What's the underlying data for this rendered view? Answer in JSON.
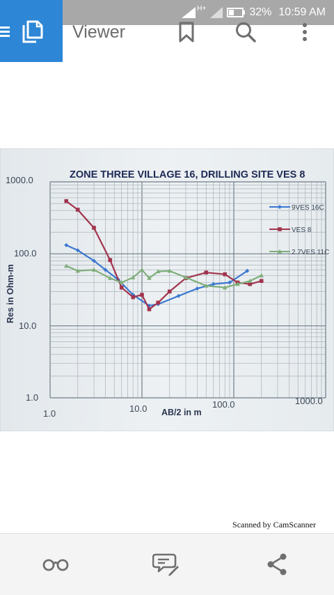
{
  "status_bar": {
    "network": "H+",
    "battery": "32%",
    "time": "10:59 AM"
  },
  "app_bar": {
    "title": "Viewer",
    "accent_color": "#2d86d6"
  },
  "document": {
    "scan_credit": "Scanned by CamScanner"
  },
  "chart_data": {
    "type": "line",
    "title": "ZONE THREE VILLAGE 16, DRILLING SITE VES 8",
    "xlabel": "AB/2 in m",
    "ylabel": "Res in Ohm-m",
    "x_scale": "log",
    "y_scale": "log",
    "xlim": [
      1.0,
      1000.0
    ],
    "ylim": [
      1.0,
      1000.0
    ],
    "x_ticks": [
      "1.0",
      "10.0",
      "100.0",
      "1000.0"
    ],
    "y_ticks": [
      "1000.0",
      "100.0",
      "10.0",
      "1.0"
    ],
    "grid": true,
    "legend": "right",
    "series": [
      {
        "name": "9VES 16C",
        "color": "#3b78d0",
        "marker": "diamond",
        "x": [
          1.5,
          2.0,
          3.0,
          4.0,
          5.5,
          8.0,
          12.0,
          15.0,
          25.0,
          40.0,
          60.0,
          90.0,
          140.0
        ],
        "y": [
          132,
          112,
          80,
          60,
          44,
          27,
          19,
          20,
          26,
          33,
          38,
          40,
          58
        ]
      },
      {
        "name": "VES 8",
        "color": "#a2344d",
        "marker": "square",
        "x": [
          1.5,
          2.0,
          3.0,
          4.5,
          6.0,
          8.0,
          10.0,
          12.0,
          15.0,
          20.0,
          30.0,
          50.0,
          80.0,
          110.0,
          150.0,
          200.0
        ],
        "y": [
          540,
          410,
          230,
          82,
          34,
          25,
          27,
          17,
          21,
          30,
          46,
          55,
          52,
          40,
          38,
          42
        ]
      },
      {
        "name": "2.7VES 11C",
        "color": "#7fae7a",
        "marker": "triangle",
        "x": [
          1.5,
          2.0,
          3.0,
          4.5,
          6.0,
          8.0,
          10.0,
          12.0,
          15.0,
          20.0,
          30.0,
          50.0,
          80.0,
          110.0,
          150.0,
          200.0
        ],
        "y": [
          68,
          58,
          60,
          46,
          40,
          47,
          60,
          46,
          57,
          58,
          47,
          36,
          34,
          38,
          42,
          50
        ]
      }
    ]
  }
}
